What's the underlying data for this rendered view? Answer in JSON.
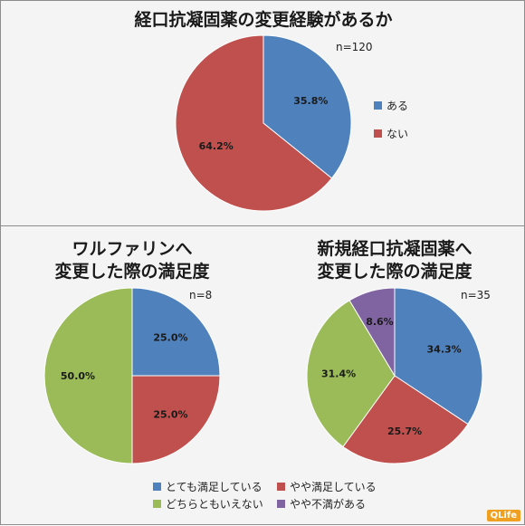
{
  "charts": {
    "top": {
      "title": "経口抗凝固薬の変更経験があるか",
      "n_label": "n=120",
      "legend": [
        "ある",
        "ない"
      ]
    },
    "warfarin": {
      "title_line1": "ワルファリンへ",
      "title_line2": "変更した際の満足度",
      "n_label": "n=8"
    },
    "newdrug": {
      "title_line1": "新規経口抗凝固薬へ",
      "title_line2": "変更した際の満足度",
      "n_label": "n=35"
    }
  },
  "legend_bottom": [
    "とても満足している",
    "やや満足している",
    "どちらともいえない",
    "やや不満がある"
  ],
  "logo": "QLife",
  "colors": {
    "blue": "#4f81bd",
    "red": "#c0504d",
    "green": "#9bbb59",
    "purple": "#8064a2"
  },
  "chart_data": [
    {
      "type": "pie",
      "title": "経口抗凝固薬の変更経験があるか",
      "categories": [
        "ある",
        "ない"
      ],
      "values": [
        35.8,
        64.2
      ],
      "labels": [
        "35.8%",
        "64.2%"
      ],
      "colors": [
        "#4f81bd",
        "#c0504d"
      ],
      "n": "n=120",
      "legend_position": "right"
    },
    {
      "type": "pie",
      "title": "ワルファリンへ 変更した際の満足度",
      "categories": [
        "とても満足している",
        "やや満足している",
        "どちらともいえない",
        "やや不満がある"
      ],
      "values": [
        25.0,
        25.0,
        50.0,
        0
      ],
      "labels": [
        "25.0%",
        "25.0%",
        "50.0%",
        ""
      ],
      "colors": [
        "#4f81bd",
        "#c0504d",
        "#9bbb59",
        "#8064a2"
      ],
      "n": "n=8",
      "legend_position": "bottom"
    },
    {
      "type": "pie",
      "title": "新規経口抗凝固薬へ 変更した際の満足度",
      "categories": [
        "とても満足している",
        "やや満足している",
        "どちらともいえない",
        "やや不満がある"
      ],
      "values": [
        34.3,
        25.7,
        31.4,
        8.6
      ],
      "labels": [
        "34.3%",
        "25.7%",
        "31.4%",
        "8.6%"
      ],
      "colors": [
        "#4f81bd",
        "#c0504d",
        "#9bbb59",
        "#8064a2"
      ],
      "n": "n=35",
      "legend_position": "bottom"
    }
  ]
}
